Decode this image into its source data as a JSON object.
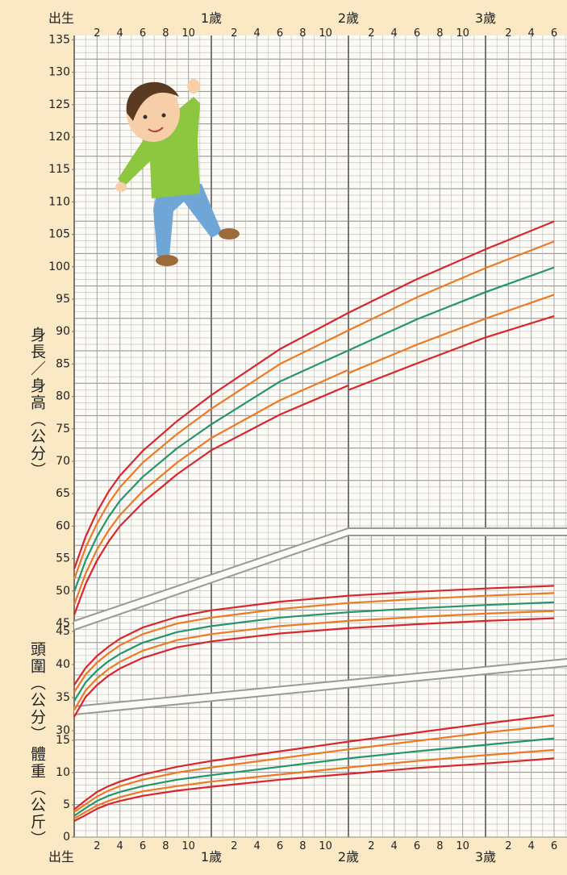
{
  "chart_data": [
    {
      "type": "line",
      "y_label": "身長／身高（公分）",
      "xlim": [
        0,
        43
      ],
      "ylim": [
        45,
        135
      ],
      "yticks": [
        45,
        50,
        55,
        60,
        65,
        70,
        75,
        80,
        85,
        90,
        95,
        100,
        105,
        110,
        115,
        120,
        125,
        130,
        135
      ],
      "x": [
        0,
        1,
        2,
        3,
        4,
        6,
        9,
        12,
        18,
        24
      ],
      "series": [
        {
          "color": "#d7262e",
          "values": [
            46.3,
            51.1,
            54.7,
            57.6,
            60.0,
            63.6,
            68.0,
            71.7,
            77.2,
            81.7
          ]
        },
        {
          "color": "#ec7a24",
          "values": [
            47.9,
            52.7,
            56.4,
            59.3,
            61.7,
            65.4,
            69.8,
            73.6,
            79.4,
            84.1
          ]
        },
        {
          "color": "#24956c",
          "values": [
            49.9,
            54.7,
            58.4,
            61.4,
            63.9,
            67.6,
            72.0,
            75.7,
            82.3,
            87.1
          ]
        },
        {
          "color": "#ec7a24",
          "values": [
            51.8,
            56.7,
            60.4,
            63.5,
            66.0,
            69.8,
            74.2,
            78.1,
            85.0,
            90.2
          ]
        },
        {
          "color": "#d7262e",
          "values": [
            53.4,
            58.4,
            62.2,
            65.3,
            67.8,
            71.6,
            76.2,
            80.2,
            87.3,
            92.9
          ]
        }
      ]
    },
    {
      "type": "line",
      "xlim": [
        0,
        43
      ],
      "ylim": [
        45,
        135
      ],
      "x": [
        24,
        30,
        36,
        42
      ],
      "series": [
        {
          "color": "#d7262e",
          "values": [
            81.0,
            85.1,
            89.1,
            92.4
          ]
        },
        {
          "color": "#ec7a24",
          "values": [
            83.6,
            88.0,
            92.0,
            95.7
          ]
        },
        {
          "color": "#24956c",
          "values": [
            87.1,
            91.9,
            96.1,
            99.9
          ]
        },
        {
          "color": "#ec7a24",
          "values": [
            90.2,
            95.3,
            99.8,
            103.9
          ]
        },
        {
          "color": "#d7262e",
          "values": [
            92.9,
            98.1,
            102.7,
            107.0
          ]
        }
      ]
    },
    {
      "type": "line",
      "y_label": "頭圍（公分）",
      "xlim": [
        0,
        43
      ],
      "ylim": [
        30,
        52
      ],
      "yticks": [
        30,
        35,
        40,
        45
      ],
      "x": [
        0,
        1,
        2,
        3,
        4,
        6,
        9,
        12,
        18,
        24,
        30,
        36,
        42
      ],
      "series": [
        {
          "color": "#d7262e",
          "values": [
            32.1,
            35.1,
            36.9,
            38.3,
            39.4,
            41.0,
            42.6,
            43.5,
            44.7,
            45.5,
            46.1,
            46.6,
            47.0
          ]
        },
        {
          "color": "#ec7a24",
          "values": [
            33.1,
            36.1,
            37.9,
            39.3,
            40.4,
            42.1,
            43.7,
            44.6,
            45.8,
            46.6,
            47.2,
            47.7,
            48.1
          ]
        },
        {
          "color": "#24956c",
          "values": [
            34.5,
            37.3,
            39.1,
            40.5,
            41.6,
            43.3,
            44.9,
            45.8,
            47.1,
            47.9,
            48.5,
            49.0,
            49.4
          ]
        },
        {
          "color": "#ec7a24",
          "values": [
            35.8,
            38.5,
            40.3,
            41.7,
            42.9,
            44.6,
            46.2,
            47.1,
            48.4,
            49.3,
            49.9,
            50.4,
            50.8
          ]
        },
        {
          "color": "#d7262e",
          "values": [
            36.9,
            39.5,
            41.3,
            42.7,
            43.9,
            45.6,
            47.2,
            48.2,
            49.5,
            50.4,
            51.0,
            51.5,
            51.9
          ]
        }
      ]
    },
    {
      "type": "line",
      "y_label": "體重（公斤）",
      "xlim": [
        0,
        43
      ],
      "ylim": [
        0,
        20
      ],
      "yticks": [
        0,
        5,
        10,
        15
      ],
      "xticks": [
        {
          "value": 0,
          "label": "出生"
        },
        2,
        4,
        6,
        8,
        10,
        {
          "value": 12,
          "label": "1歲"
        },
        {
          "value": 14,
          "label": "2"
        },
        {
          "value": 16,
          "label": "4"
        },
        {
          "value": 18,
          "label": "6"
        },
        {
          "value": 20,
          "label": "8"
        },
        {
          "value": 22,
          "label": "10"
        },
        {
          "value": 24,
          "label": "2歲"
        },
        {
          "value": 26,
          "label": "2"
        },
        {
          "value": 28,
          "label": "4"
        },
        {
          "value": 30,
          "label": "6"
        },
        {
          "value": 32,
          "label": "8"
        },
        {
          "value": 34,
          "label": "10"
        },
        {
          "value": 36,
          "label": "3歲"
        },
        {
          "value": 38,
          "label": "2"
        },
        {
          "value": 40,
          "label": "4"
        },
        {
          "value": 42,
          "label": "6"
        }
      ],
      "x": [
        0,
        1,
        2,
        3,
        4,
        6,
        9,
        12,
        18,
        24,
        30,
        36,
        42
      ],
      "series": [
        {
          "color": "#d7262e",
          "values": [
            2.5,
            3.4,
            4.4,
            5.1,
            5.6,
            6.4,
            7.2,
            7.8,
            8.9,
            9.8,
            10.7,
            11.4,
            12.2
          ]
        },
        {
          "color": "#ec7a24",
          "values": [
            2.9,
            3.9,
            4.9,
            5.6,
            6.2,
            7.1,
            7.9,
            8.6,
            9.7,
            10.8,
            11.8,
            12.7,
            13.5
          ]
        },
        {
          "color": "#24956c",
          "values": [
            3.3,
            4.5,
            5.6,
            6.4,
            7.0,
            7.9,
            8.9,
            9.6,
            10.9,
            12.2,
            13.3,
            14.3,
            15.3
          ]
        },
        {
          "color": "#ec7a24",
          "values": [
            3.9,
            5.1,
            6.3,
            7.2,
            7.9,
            8.9,
            10.0,
            10.8,
            12.2,
            13.6,
            14.9,
            16.2,
            17.3
          ]
        },
        {
          "color": "#d7262e",
          "values": [
            4.3,
            5.7,
            7.0,
            7.9,
            8.6,
            9.7,
            10.9,
            11.8,
            13.3,
            14.8,
            16.2,
            17.6,
            18.9
          ]
        }
      ]
    }
  ]
}
